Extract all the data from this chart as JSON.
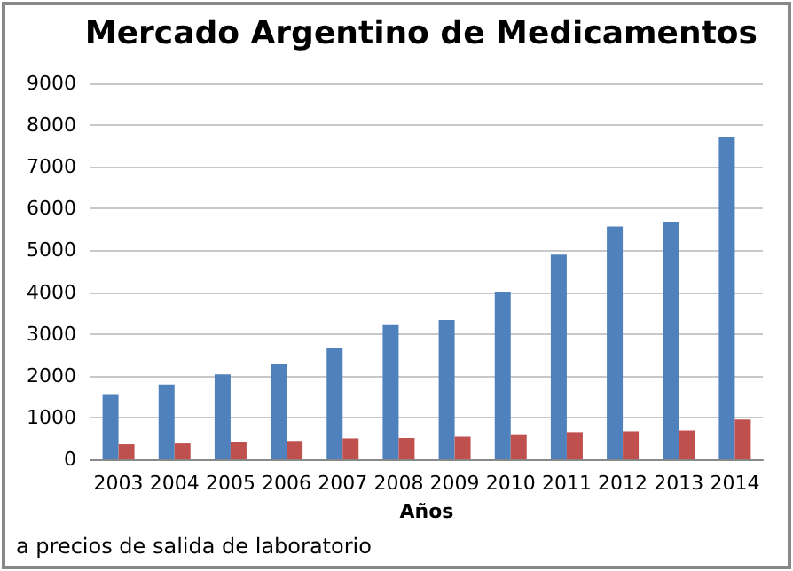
{
  "chart_data": {
    "type": "bar",
    "title": "Mercado Argentino de Medicamentos",
    "xlabel": "Años",
    "categories": [
      "2003",
      "2004",
      "2005",
      "2006",
      "2007",
      "2008",
      "2009",
      "2010",
      "2011",
      "2012",
      "2013",
      "2014"
    ],
    "series": [
      {
        "color": "#4f81bd",
        "values": [
          1560,
          1790,
          2030,
          2270,
          2660,
          3230,
          3330,
          4010,
          4900,
          5570,
          5690,
          7710
        ]
      },
      {
        "color": "#c0504d",
        "values": [
          360,
          380,
          410,
          440,
          500,
          510,
          540,
          580,
          650,
          670,
          690,
          950
        ]
      }
    ],
    "ylim": [
      0,
      9000
    ],
    "yticks": [
      0,
      1000,
      2000,
      3000,
      4000,
      5000,
      6000,
      7000,
      8000,
      9000
    ],
    "grid": "y",
    "annotations": [
      "a precios de salida de laboratorio"
    ]
  }
}
